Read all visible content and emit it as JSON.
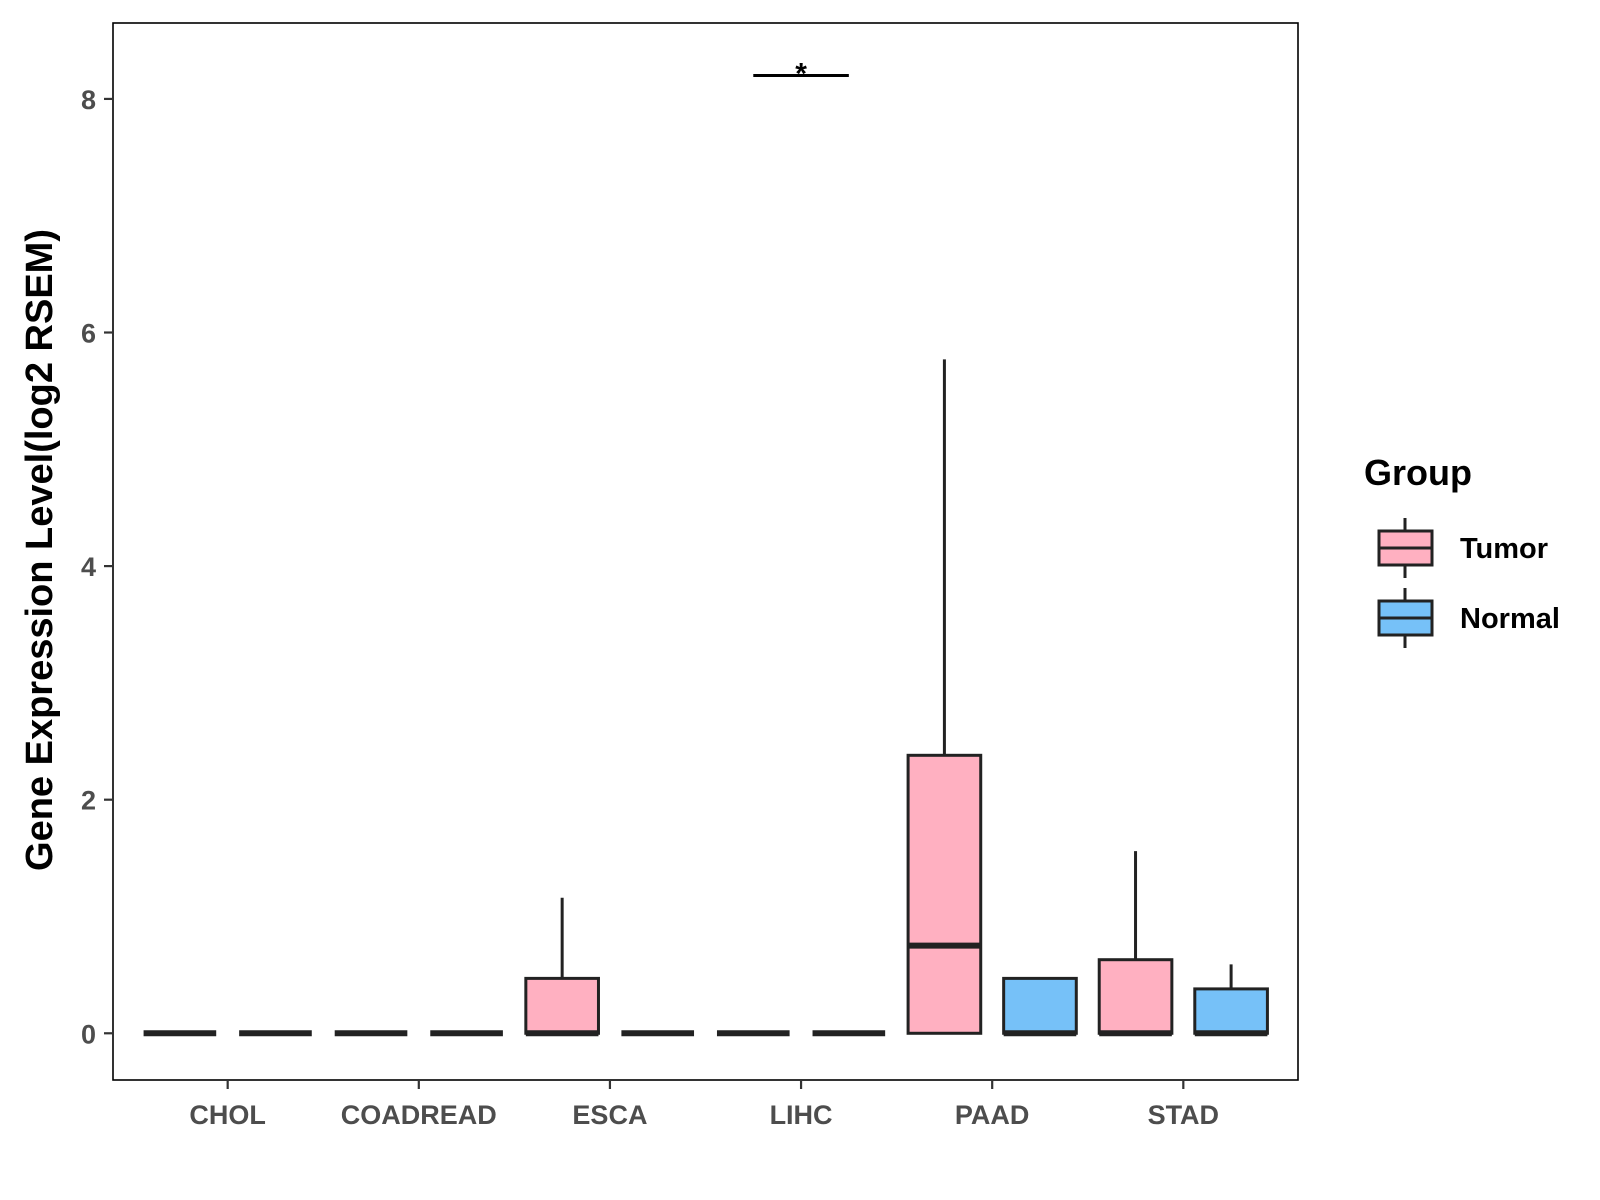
{
  "chart_data": {
    "type": "boxplot",
    "ylabel": "Gene Expression Level(log2 RSEM)",
    "xlabel": "",
    "ylim": [
      -0.4,
      8.65
    ],
    "yticks": [
      0,
      2,
      4,
      6,
      8
    ],
    "ytick_labels": [
      "0",
      "2",
      "4",
      "6",
      "8"
    ],
    "grid": false,
    "legend": {
      "title": "Group",
      "position": "right",
      "entries": [
        {
          "name": "Tumor",
          "color": "#FFB0C1"
        },
        {
          "name": "Normal",
          "color": "#76C1F8"
        }
      ]
    },
    "categories": [
      "CHOL",
      "COADREAD",
      "ESCA",
      "LIHC",
      "PAAD",
      "STAD"
    ],
    "series": [
      {
        "name": "Tumor",
        "color": "#FFB0C1",
        "boxes": [
          {
            "min": 0,
            "q1": 0,
            "median": 0,
            "q3": 0,
            "max": 0
          },
          {
            "min": 0,
            "q1": 0,
            "median": 0,
            "q3": 0,
            "max": 0
          },
          {
            "min": 0,
            "q1": 0,
            "median": 0,
            "q3": 0.47,
            "max": 1.16
          },
          {
            "min": 0,
            "q1": 0,
            "median": 0,
            "q3": 0,
            "max": 0
          },
          {
            "min": 0,
            "q1": 0,
            "median": 0.75,
            "q3": 2.38,
            "max": 5.77
          },
          {
            "min": 0,
            "q1": 0,
            "median": 0,
            "q3": 0.63,
            "max": 1.56
          }
        ]
      },
      {
        "name": "Normal",
        "color": "#76C1F8",
        "boxes": [
          {
            "min": 0,
            "q1": 0,
            "median": 0,
            "q3": 0,
            "max": 0
          },
          {
            "min": 0,
            "q1": 0,
            "median": 0,
            "q3": 0,
            "max": 0
          },
          {
            "min": 0,
            "q1": 0,
            "median": 0,
            "q3": 0,
            "max": 0
          },
          {
            "min": 0,
            "q1": 0,
            "median": 0,
            "q3": 0,
            "max": 0
          },
          {
            "min": 0,
            "q1": 0,
            "median": 0,
            "q3": 0.47,
            "max": 0.47
          },
          {
            "min": 0,
            "q1": 0,
            "median": 0,
            "q3": 0.38,
            "max": 0.59
          }
        ]
      }
    ],
    "annotations": [
      {
        "category": "LIHC",
        "label": "*",
        "y": 8.2
      }
    ]
  }
}
